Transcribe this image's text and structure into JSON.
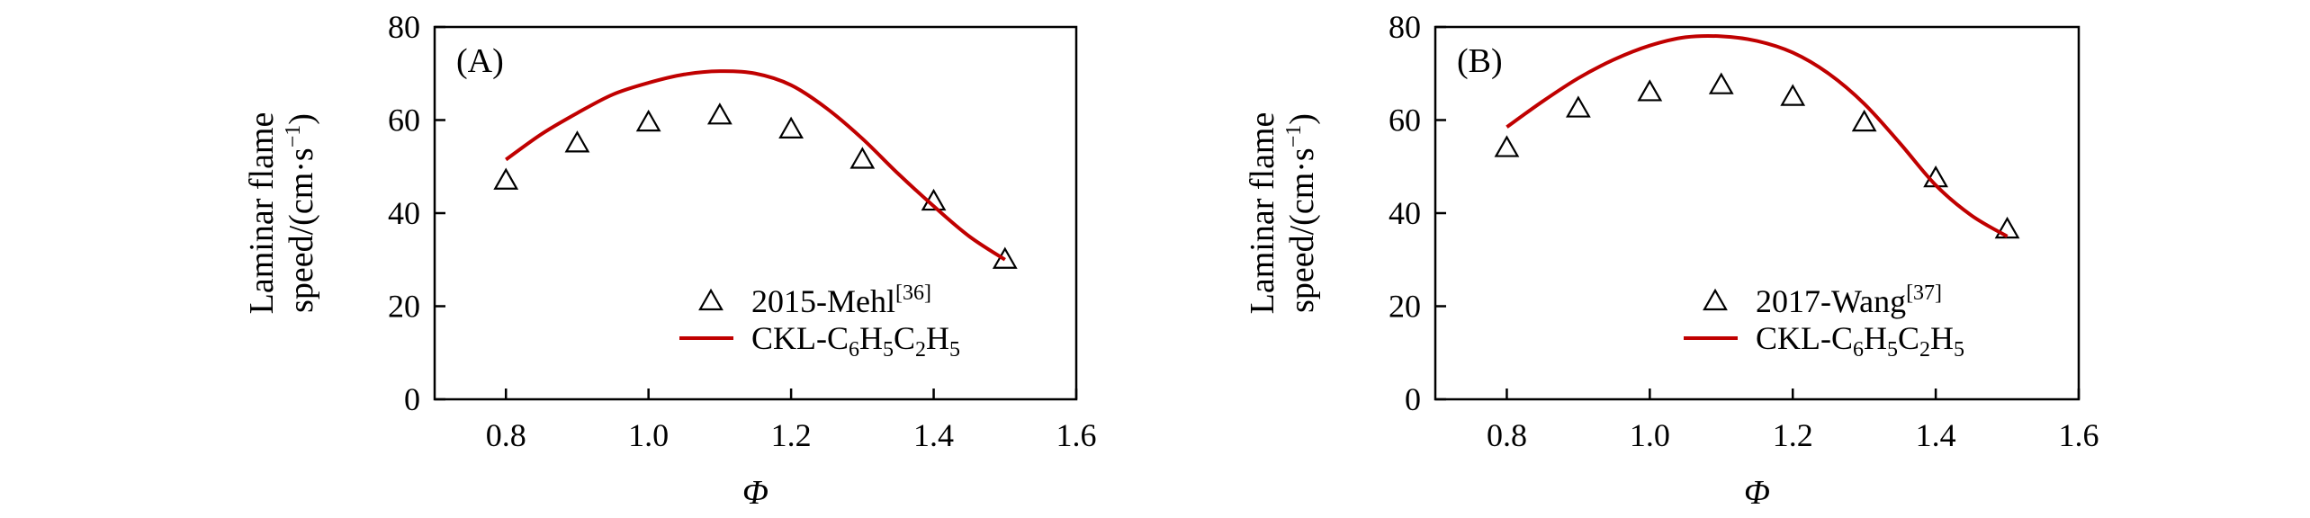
{
  "chart_data": [
    {
      "type": "line",
      "panel_label": "(A)",
      "xlabel": "Φ",
      "ylabel_line1": "Laminar flame",
      "ylabel_line2": "speed/(cm·s",
      "ylabel_unit_exp": "−1",
      "ylabel_close": ")",
      "xlim": [
        0.7,
        1.6
      ],
      "ylim": [
        0,
        80
      ],
      "xticks": [
        "0.8",
        "1.0",
        "1.2",
        "1.4",
        "1.6"
      ],
      "yticks": [
        "0",
        "20",
        "40",
        "60",
        "80"
      ],
      "legend_position": "bottom-right",
      "series": [
        {
          "name": "2015-Mehl",
          "name_sup": "[36]",
          "kind": "scatter",
          "marker": "open-triangle",
          "color": "#000000",
          "x": [
            0.8,
            0.9,
            1.0,
            1.1,
            1.2,
            1.3,
            1.4,
            1.5
          ],
          "y": [
            47,
            55,
            59.5,
            61,
            58,
            51.5,
            42.5,
            30
          ]
        },
        {
          "name": "CKL-C",
          "name_parts": [
            "CKL-C",
            "6",
            "H",
            "5",
            "C",
            "2",
            "H",
            "5"
          ],
          "kind": "line",
          "color": "#c00000",
          "x": [
            0.8,
            0.85,
            0.9,
            0.95,
            1.0,
            1.05,
            1.1,
            1.15,
            1.2,
            1.25,
            1.3,
            1.35,
            1.4,
            1.45,
            1.5
          ],
          "y": [
            51.5,
            57,
            61.5,
            65.5,
            68,
            69.8,
            70.5,
            70,
            67.5,
            62.5,
            56,
            48.5,
            41.5,
            35,
            30
          ]
        }
      ]
    },
    {
      "type": "line",
      "panel_label": "(B)",
      "xlabel": "Φ",
      "ylabel_line1": "Laminar flame",
      "ylabel_line2": "speed/(cm·s",
      "ylabel_unit_exp": "−1",
      "ylabel_close": ")",
      "xlim": [
        0.7,
        1.6
      ],
      "ylim": [
        0,
        80
      ],
      "xticks": [
        "0.8",
        "1.0",
        "1.2",
        "1.4",
        "1.6"
      ],
      "yticks": [
        "0",
        "20",
        "40",
        "60",
        "80"
      ],
      "legend_position": "bottom-right",
      "series": [
        {
          "name": "2017-Wang",
          "name_sup": "[37]",
          "kind": "scatter",
          "marker": "open-triangle",
          "color": "#000000",
          "x": [
            0.8,
            0.9,
            1.0,
            1.1,
            1.2,
            1.3,
            1.4,
            1.5
          ],
          "y": [
            54,
            62.5,
            66,
            67.5,
            65,
            59.5,
            47.5,
            36.5
          ]
        },
        {
          "name": "CKL-C",
          "name_parts": [
            "CKL-C",
            "6",
            "H",
            "5",
            "C",
            "2",
            "H",
            "5"
          ],
          "kind": "line",
          "color": "#c00000",
          "x": [
            0.8,
            0.85,
            0.9,
            0.95,
            1.0,
            1.05,
            1.1,
            1.15,
            1.2,
            1.25,
            1.3,
            1.35,
            1.4,
            1.45,
            1.5
          ],
          "y": [
            58.5,
            64,
            69,
            73,
            76,
            77.8,
            78,
            77,
            74.5,
            70,
            63.5,
            55,
            46,
            39.5,
            35
          ]
        }
      ]
    }
  ]
}
